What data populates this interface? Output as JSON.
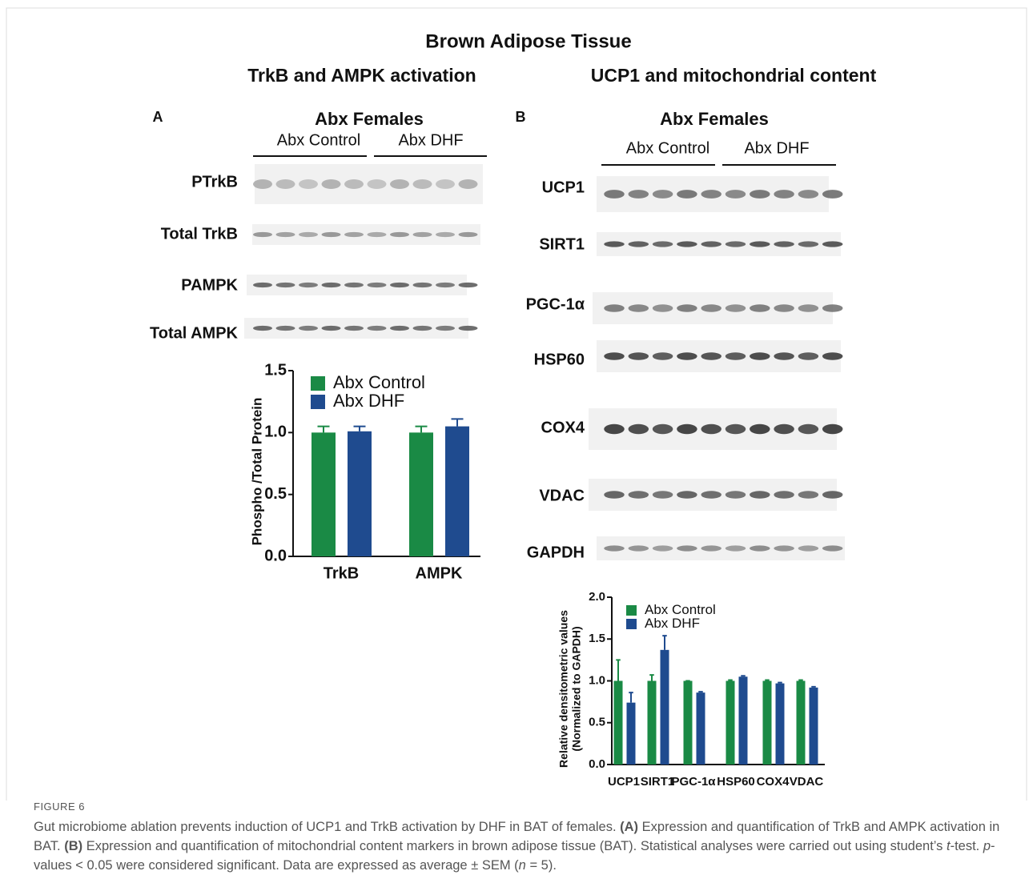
{
  "figure_title": "Brown Adipose Tissue",
  "panels": [
    {
      "label": "A",
      "heading": "TrkB and AMPK activation",
      "group_title": "Abx Females",
      "groups": [
        "Abx Control",
        "Abx DHF"
      ],
      "rows": [
        "PTrkB",
        "Total TrkB",
        "PAMPK",
        "Total AMPK"
      ]
    },
    {
      "label": "B",
      "heading": "UCP1 and mitochondrial content",
      "group_title": "Abx Females",
      "groups": [
        "Abx Control",
        "Abx DHF"
      ],
      "rows": [
        "UCP1",
        "SIRT1",
        "PGC-1α",
        "HSP60",
        "COX4",
        "VDAC",
        "GAPDH"
      ]
    }
  ],
  "chart_data": [
    {
      "type": "bar",
      "y_label": "Phospho /Total Protein",
      "categories": [
        "TrkB",
        "AMPK"
      ],
      "series": [
        {
          "name": "Abx Control",
          "color": "#1a8a45",
          "values": [
            1.0,
            1.0
          ],
          "errors": [
            0.05,
            0.05
          ]
        },
        {
          "name": "Abx DHF",
          "color": "#1f4b8f",
          "values": [
            1.01,
            1.05
          ],
          "errors": [
            0.04,
            0.06
          ]
        }
      ],
      "ylim": [
        0,
        1.5
      ],
      "yticks": [
        {
          "value": 0,
          "label": "0.0"
        },
        0.5,
        {
          "value": 1,
          "label": "1.0"
        },
        1.5
      ]
    },
    {
      "type": "bar",
      "y_label": [
        "Relative densitometric values",
        "(Normalized to GAPDH)"
      ],
      "categories": [
        "UCP1",
        "SIRT1",
        "PGC-1α",
        "HSP60",
        "COX4",
        "VDAC"
      ],
      "series": [
        {
          "name": "Abx Control",
          "color": "#1a8a45",
          "values": [
            1.0,
            1.0,
            1.0,
            1.0,
            1.0,
            1.0
          ],
          "errors": [
            0.25,
            0.07,
            0,
            0.01,
            0.01,
            0.01
          ]
        },
        {
          "name": "Abx DHF",
          "color": "#1f4b8f",
          "values": [
            0.74,
            1.37,
            0.86,
            1.05,
            0.97,
            0.92
          ],
          "errors": [
            0.12,
            0.17,
            0.01,
            0.01,
            0.01,
            0.01
          ]
        }
      ],
      "ylim": [
        0,
        2
      ],
      "yticks": [
        {
          "value": 0,
          "label": "0.0"
        },
        0.5,
        {
          "value": 1,
          "label": "1.0"
        },
        1.5,
        {
          "value": 2,
          "label": "2.0"
        }
      ]
    }
  ],
  "caption": {
    "label": "FIGURE 6",
    "runs": [
      "Gut microbiome ablation prevents induction of UCP1 and TrkB activation by DHF in BAT of females. ",
      "(A)",
      " Expression and quantification of TrkB and AMPK activation in BAT. ",
      "(B)",
      " Expression and quantification of mitochondrial content markers in brown adipose tissue (BAT). Statistical analyses were carried out using student’s ",
      "t",
      "-test. ",
      "p",
      "-values < 0.05 were considered significant. Data are expressed as average ± SEM (",
      "n",
      " = 5)."
    ]
  }
}
